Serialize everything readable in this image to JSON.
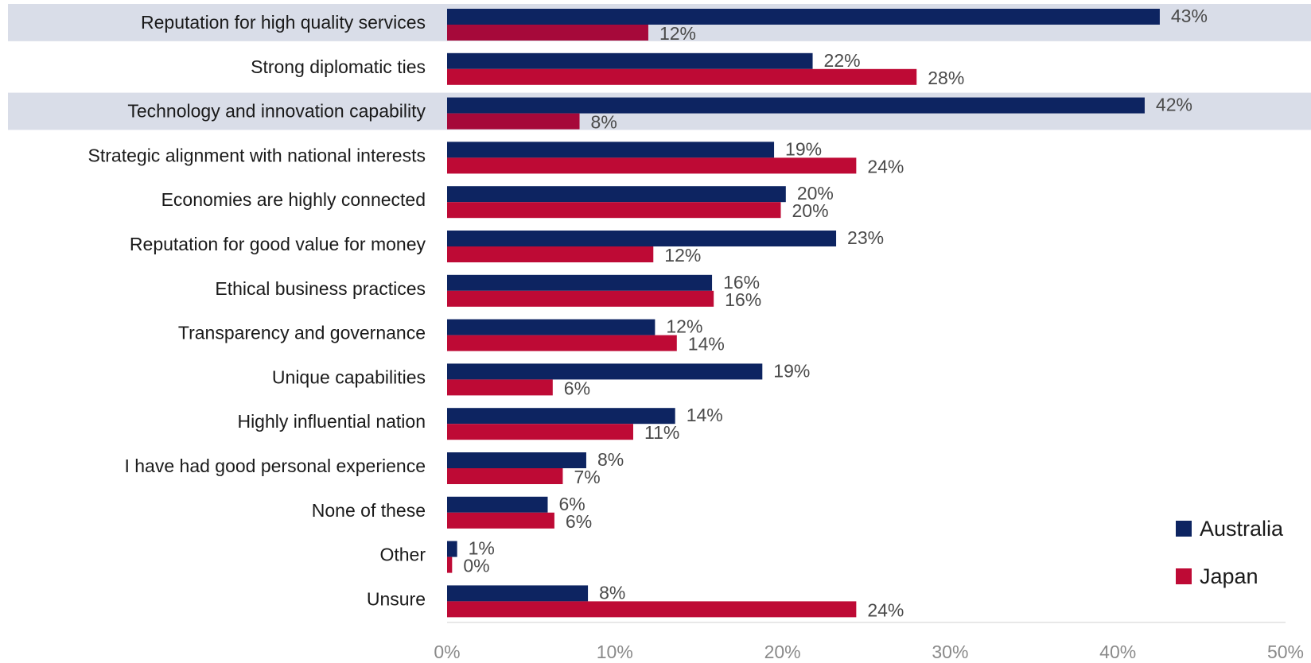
{
  "chart_data": {
    "type": "bar",
    "orientation": "horizontal",
    "categories": [
      "Reputation for high quality services",
      "Strong diplomatic ties",
      "Technology and innovation capability",
      "Strategic alignment with national interests",
      "Economies are highly connected",
      "Reputation for good value for money",
      "Ethical business practices",
      "Transparency and governance",
      "Unique capabilities",
      "Highly influential nation",
      "I have had good personal experience",
      "None of these",
      "Other",
      "Unsure"
    ],
    "series": [
      {
        "name": "Australia",
        "color": "#0d2461",
        "values": [
          42.5,
          21.8,
          41.6,
          19.5,
          20.2,
          23.2,
          15.8,
          12.4,
          18.8,
          13.6,
          8.3,
          6.0,
          0.6,
          8.4
        ],
        "labels": [
          "43%",
          "22%",
          "42%",
          "19%",
          "20%",
          "23%",
          "16%",
          "12%",
          "19%",
          "14%",
          "8%",
          "6%",
          "1%",
          "8%"
        ]
      },
      {
        "name": "Japan",
        "color": "#be0a35",
        "values": [
          12.0,
          28.0,
          7.9,
          24.4,
          19.9,
          12.3,
          15.9,
          13.7,
          6.3,
          11.1,
          6.9,
          6.4,
          0.3,
          24.4
        ],
        "labels": [
          "12%",
          "28%",
          "8%",
          "24%",
          "20%",
          "12%",
          "16%",
          "14%",
          "6%",
          "11%",
          "7%",
          "6%",
          "0%",
          "24%"
        ]
      }
    ],
    "highlight_rows": [
      0,
      2
    ],
    "highlight_color": "#d9dde8",
    "highlight_bar_color": "#a6093a",
    "xlim": [
      0,
      50
    ],
    "xticks": [
      "0%",
      "10%",
      "20%",
      "30%",
      "40%",
      "50%"
    ],
    "title": "",
    "xlabel": "",
    "ylabel": "",
    "legend_position": "bottom-right",
    "grid": false
  }
}
